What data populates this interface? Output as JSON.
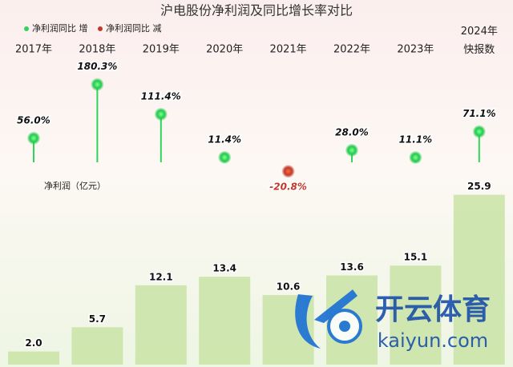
{
  "chart_data": {
    "type": "bar",
    "title": "沪电股份净利润及同比增长率对比",
    "legend": [
      {
        "label": "净利润同比 增",
        "color": "#2fd45a"
      },
      {
        "label": "净利润同比 减",
        "color": "#c0392b"
      }
    ],
    "categories": [
      "2017年",
      "2018年",
      "2019年",
      "2020年",
      "2021年",
      "2022年",
      "2023年",
      "2024年\n快报数"
    ],
    "annotation": "净利润（亿元）",
    "ylim": [
      0,
      27.5
    ],
    "y2lim": [
      -50,
      210
    ],
    "series": [
      {
        "type": "bar",
        "color": "#c9e3a6",
        "values": [
          2.0,
          5.7,
          12.1,
          13.4,
          10.6,
          13.6,
          15.1,
          25.9
        ],
        "value_labels": [
          "2.0",
          "5.7",
          "12.1",
          "13.4",
          "10.6",
          "13.6",
          "15.1",
          "25.9"
        ]
      },
      {
        "type": "lollipop",
        "axis": "y2",
        "color": "#2fd45a",
        "negative_color": "#c0392b",
        "values": [
          56.0,
          180.3,
          111.4,
          11.4,
          -20.8,
          28.0,
          11.1,
          71.1
        ],
        "value_labels": [
          "56.0%",
          "180.3%",
          "111.4%",
          "11.4%",
          "-20.8%",
          "28.0%",
          "11.1%",
          "71.1%"
        ]
      }
    ]
  },
  "watermark": {
    "brand": "开云体育",
    "url": "kaiyun.com"
  }
}
